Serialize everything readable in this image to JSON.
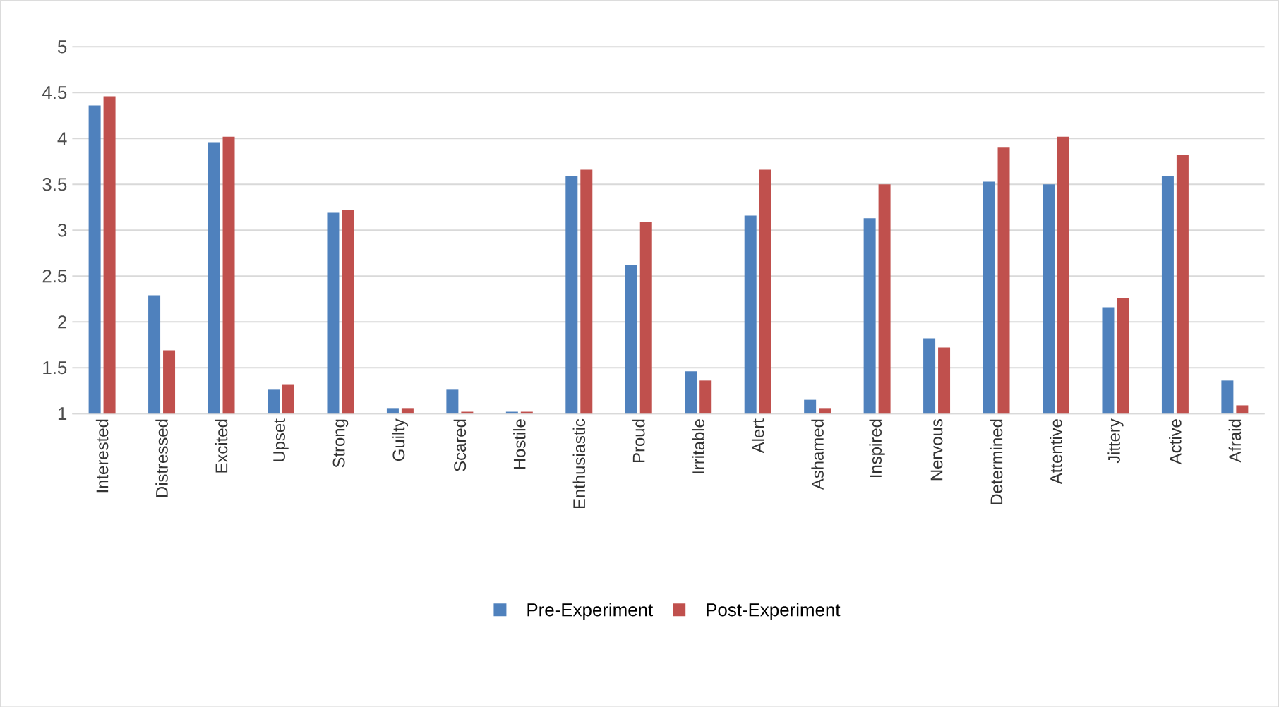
{
  "chart_data": {
    "type": "bar",
    "categories": [
      "Interested",
      "Distressed",
      "Excited",
      "Upset",
      "Strong",
      "Guilty",
      "Scared",
      "Hostile",
      "Enthusiastic",
      "Proud",
      "Irritable",
      "Alert",
      "Ashamed",
      "Inspired",
      "Nervous",
      "Determined",
      "Attentive",
      "Jittery",
      "Active",
      "Afraid"
    ],
    "series": [
      {
        "name": "Pre-Experiment",
        "color": "#4f81bd",
        "values": [
          4.36,
          2.29,
          3.96,
          1.26,
          3.19,
          1.06,
          1.26,
          1.02,
          3.59,
          2.62,
          1.46,
          3.16,
          1.15,
          3.13,
          1.82,
          3.53,
          3.5,
          2.16,
          3.59,
          1.36
        ]
      },
      {
        "name": "Post-Experiment",
        "color": "#c0504d",
        "values": [
          4.46,
          1.69,
          4.02,
          1.32,
          3.22,
          1.06,
          1.02,
          1.02,
          3.66,
          3.09,
          1.36,
          3.66,
          1.06,
          3.5,
          1.72,
          3.9,
          4.02,
          2.26,
          3.82,
          1.09
        ]
      }
    ],
    "ylim": [
      1,
      5
    ],
    "yticks": [
      1,
      1.5,
      2,
      2.5,
      3,
      3.5,
      4,
      4.5,
      5
    ],
    "grid": "y",
    "legend": "bottom"
  }
}
